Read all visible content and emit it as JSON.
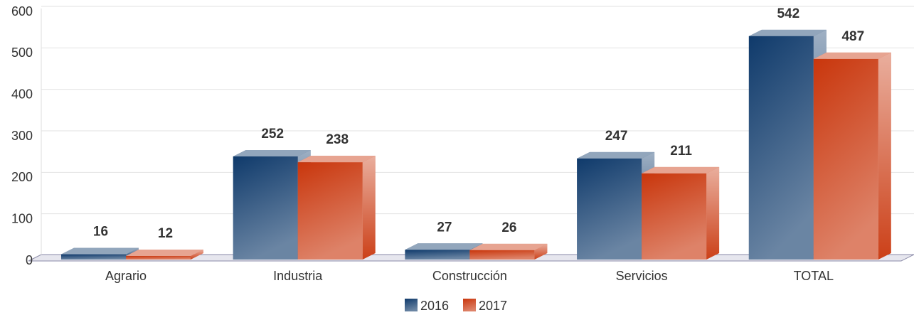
{
  "chart_data": {
    "type": "bar3d",
    "categories": [
      "Agrario",
      "Industria",
      "Construcción",
      "Servicios",
      "TOTAL"
    ],
    "series": [
      {
        "name": "2016",
        "color": "#0f3a6b",
        "values": [
          16,
          252,
          27,
          247,
          542
        ]
      },
      {
        "name": "2017",
        "color": "#c9360c",
        "values": [
          12,
          238,
          26,
          211,
          487
        ]
      }
    ],
    "ylim": [
      0,
      600
    ],
    "yticks": [
      0,
      100,
      200,
      300,
      400,
      500,
      600
    ],
    "grid": true,
    "legend": "bottom"
  }
}
